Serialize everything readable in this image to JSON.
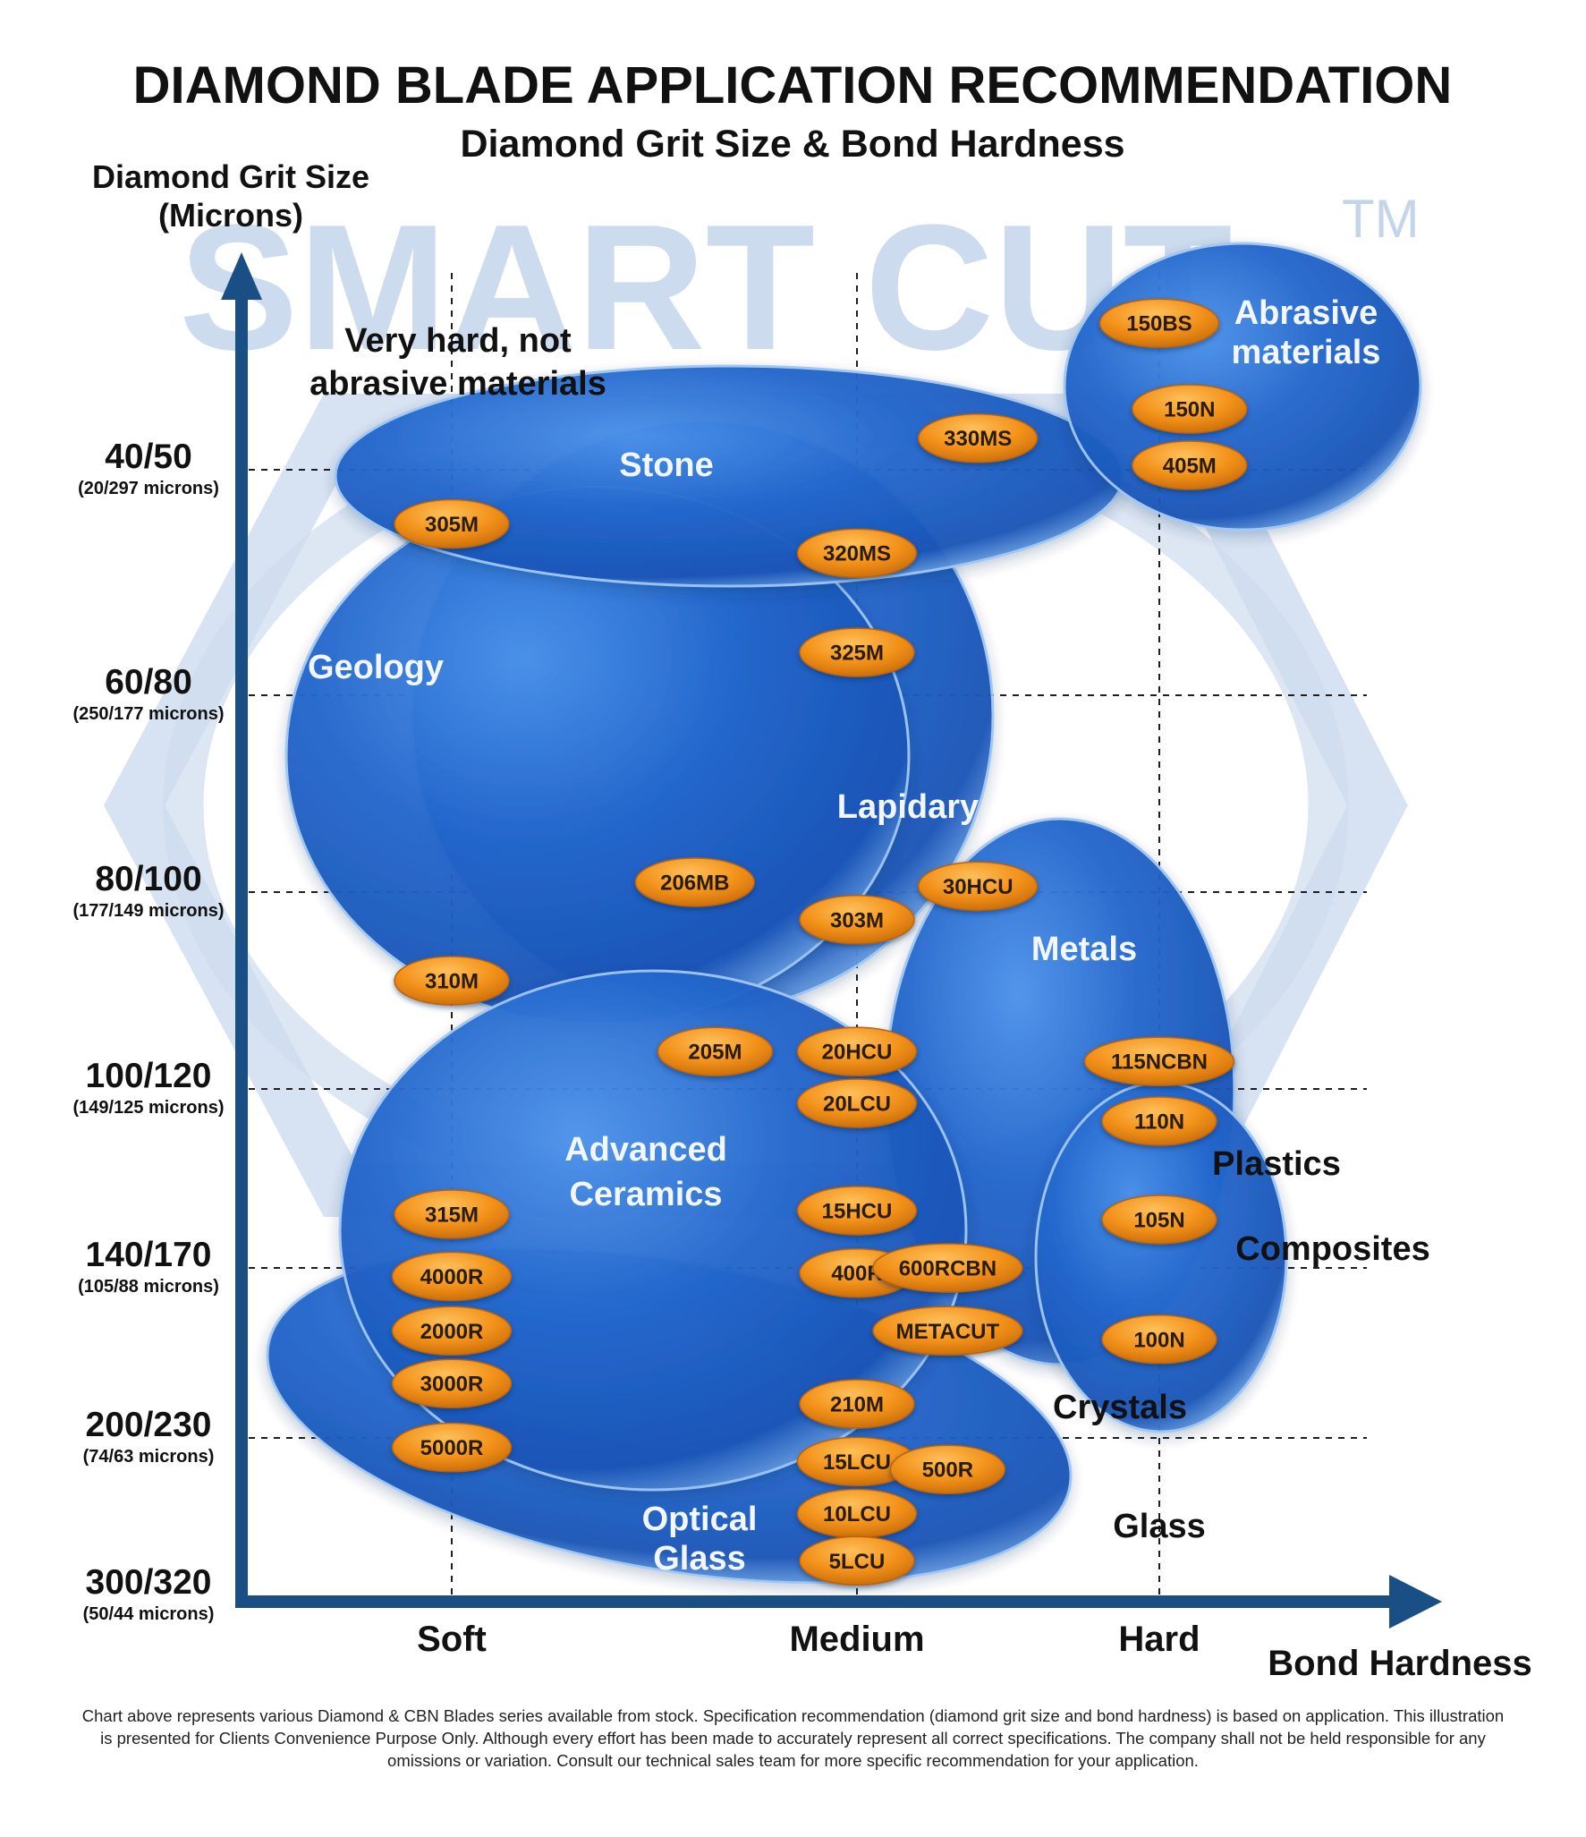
{
  "title": "DIAMOND BLADE APPLICATION RECOMMENDATION",
  "subtitle": "Diamond Grit Size & Bond Hardness",
  "watermark": "SMART CUT",
  "watermark_tm": "TM",
  "colors": {
    "bubble": "#1e63c8",
    "pill": "#f0921a",
    "axis": "#1a4f85",
    "watermark": "#c4d5ea"
  },
  "chart_data": {
    "type": "bubble-map",
    "title": "DIAMOND BLADE APPLICATION RECOMMENDATION",
    "subtitle": "Diamond Grit Size & Bond Hardness",
    "ylabel": [
      "Diamond Grit Size",
      "(Microns)"
    ],
    "xlabel": "Bond Hardness",
    "x_categories": [
      "Soft",
      "Medium",
      "Hard"
    ],
    "y_categories": [
      {
        "grit": "40/50",
        "microns": "(20/297 microns)"
      },
      {
        "grit": "60/80",
        "microns": "(250/177 microns)"
      },
      {
        "grit": "80/100",
        "microns": "(177/149 microns)"
      },
      {
        "grit": "100/120",
        "microns": "(149/125 microns)"
      },
      {
        "grit": "140/170",
        "microns": "(105/88 microns)"
      },
      {
        "grit": "200/230",
        "microns": "(74/63 microns)"
      },
      {
        "grit": "300/320",
        "microns": "(50/44 microns)"
      }
    ],
    "regions": [
      {
        "label": "Very hard, not abrasive materials",
        "lines": [
          "Very hard, not",
          "abrasive materials"
        ]
      },
      {
        "label": "Stone",
        "lines": [
          "Stone"
        ]
      },
      {
        "label": "Abrasive materials",
        "lines": [
          "Abrasive",
          "materials"
        ]
      },
      {
        "label": "Geology",
        "lines": [
          "Geology"
        ]
      },
      {
        "label": "Lapidary",
        "lines": [
          "Lapidary"
        ]
      },
      {
        "label": "Metals",
        "lines": [
          "Metals"
        ]
      },
      {
        "label": "Advanced Ceramics",
        "lines": [
          "Advanced",
          "Ceramics"
        ]
      },
      {
        "label": "Plastics",
        "lines": [
          "Plastics"
        ]
      },
      {
        "label": "Composites",
        "lines": [
          "Composites"
        ]
      },
      {
        "label": "Crystals",
        "lines": [
          "Crystals"
        ]
      },
      {
        "label": "Optical Glass",
        "lines": [
          "Optical",
          "Glass"
        ]
      },
      {
        "label": "Glass",
        "lines": [
          "Glass"
        ]
      }
    ],
    "blade_series": [
      {
        "name": "150BS",
        "hardness": 2.0,
        "grit_index": -0.65
      },
      {
        "name": "150N",
        "hardness": 2.1,
        "grit_index": -0.27
      },
      {
        "name": "405M",
        "hardness": 2.1,
        "grit_index": -0.02
      },
      {
        "name": "330MS",
        "hardness": 1.4,
        "grit_index": -0.14
      },
      {
        "name": "305M",
        "hardness": 0.0,
        "grit_index": 0.24
      },
      {
        "name": "320MS",
        "hardness": 1.0,
        "grit_index": 0.37
      },
      {
        "name": "325M",
        "hardness": 1.0,
        "grit_index": 0.81
      },
      {
        "name": "206MB",
        "hardness": 0.6,
        "grit_index": 1.95
      },
      {
        "name": "30HCU",
        "hardness": 1.4,
        "grit_index": 1.97
      },
      {
        "name": "303M",
        "hardness": 1.0,
        "grit_index": 2.14
      },
      {
        "name": "310M",
        "hardness": 0.0,
        "grit_index": 2.45
      },
      {
        "name": "205M",
        "hardness": 0.65,
        "grit_index": 2.81
      },
      {
        "name": "20HCU",
        "hardness": 1.0,
        "grit_index": 2.81
      },
      {
        "name": "115NCBN",
        "hardness": 2.0,
        "grit_index": 2.86
      },
      {
        "name": "20LCU",
        "hardness": 1.0,
        "grit_index": 3.08
      },
      {
        "name": "110N",
        "hardness": 2.0,
        "grit_index": 3.18
      },
      {
        "name": "15HCU",
        "hardness": 1.0,
        "grit_index": 3.68
      },
      {
        "name": "315M",
        "hardness": 0.0,
        "grit_index": 3.7
      },
      {
        "name": "105N",
        "hardness": 2.0,
        "grit_index": 3.73
      },
      {
        "name": "4000R",
        "hardness": 0.0,
        "grit_index": 4.05
      },
      {
        "name": "400R",
        "hardness": 1.0,
        "grit_index": 4.03
      },
      {
        "name": "600RCBN",
        "hardness": 1.3,
        "grit_index": 4.0
      },
      {
        "name": "2000R",
        "hardness": 0.0,
        "grit_index": 4.37
      },
      {
        "name": "METACUT",
        "hardness": 1.3,
        "grit_index": 4.37
      },
      {
        "name": "100N",
        "hardness": 2.0,
        "grit_index": 4.42
      },
      {
        "name": "3000R",
        "hardness": 0.0,
        "grit_index": 4.68
      },
      {
        "name": "210M",
        "hardness": 1.0,
        "grit_index": 4.8
      },
      {
        "name": "5000R",
        "hardness": 0.0,
        "grit_index": 5.06
      },
      {
        "name": "15LCU",
        "hardness": 1.0,
        "grit_index": 5.15
      },
      {
        "name": "500R",
        "hardness": 1.3,
        "grit_index": 5.2
      },
      {
        "name": "10LCU",
        "hardness": 1.0,
        "grit_index": 5.48
      },
      {
        "name": "5LCU",
        "hardness": 1.0,
        "grit_index": 5.78
      }
    ]
  },
  "footnote": "Chart above represents various Diamond & CBN Blades series available from stock. Specification recommendation (diamond grit size and bond hardness) is based on application. This illustration is presented for Clients Convenience Purpose Only. Although every effort has been made to accurately represent all correct specifications. The company shall not be held responsible for any omissions or variation. Consult our technical sales team for more specific recommendation for your application."
}
